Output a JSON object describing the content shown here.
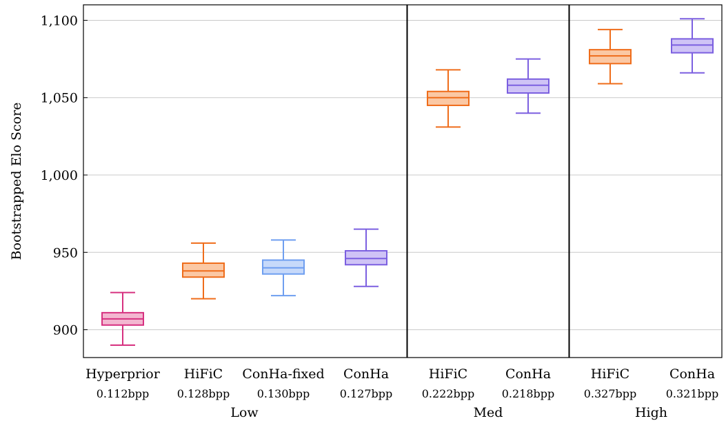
{
  "chart_data": {
    "type": "box",
    "title": "",
    "xlabel": "",
    "ylabel": "Bootstrapped Elo Score",
    "ylim": [
      882,
      1110
    ],
    "yticks": [
      900,
      950,
      1000,
      1050,
      1100
    ],
    "ytick_labels": [
      "900",
      "950",
      "1,000",
      "1,050",
      "1,100"
    ],
    "grid": "horizontal",
    "groups": [
      {
        "label": "Low",
        "count": 4
      },
      {
        "label": "Med",
        "count": 2
      },
      {
        "label": "High",
        "count": 2
      }
    ],
    "boxes": [
      {
        "name": "Hyperprior",
        "bpp": "0.112bpp",
        "group": "Low",
        "color": "#d6307f",
        "fill": "#f3b6d0",
        "min": 890,
        "q1": 903,
        "median": 907,
        "q3": 911,
        "max": 924
      },
      {
        "name": "HiFiC",
        "bpp": "0.128bpp",
        "group": "Low",
        "color": "#ef6c1a",
        "fill": "#fbc8a4",
        "min": 920,
        "q1": 934,
        "median": 938,
        "q3": 943,
        "max": 956
      },
      {
        "name": "ConHa-fixed",
        "bpp": "0.130bpp",
        "group": "Low",
        "color": "#6e9ef0",
        "fill": "#c6d9fa",
        "min": 922,
        "q1": 936,
        "median": 940,
        "q3": 945,
        "max": 958
      },
      {
        "name": "ConHa",
        "bpp": "0.127bpp",
        "group": "Low",
        "color": "#7b5fe0",
        "fill": "#cfc3f6",
        "min": 928,
        "q1": 942,
        "median": 946,
        "q3": 951,
        "max": 965
      },
      {
        "name": "HiFiC",
        "bpp": "0.222bpp",
        "group": "Med",
        "color": "#ef6c1a",
        "fill": "#fbc8a4",
        "min": 1031,
        "q1": 1045,
        "median": 1050,
        "q3": 1054,
        "max": 1068
      },
      {
        "name": "ConHa",
        "bpp": "0.218bpp",
        "group": "Med",
        "color": "#7b5fe0",
        "fill": "#cfc3f6",
        "min": 1040,
        "q1": 1053,
        "median": 1058,
        "q3": 1062,
        "max": 1075
      },
      {
        "name": "HiFiC",
        "bpp": "0.327bpp",
        "group": "High",
        "color": "#ef6c1a",
        "fill": "#fbc8a4",
        "min": 1059,
        "q1": 1072,
        "median": 1077,
        "q3": 1081,
        "max": 1094
      },
      {
        "name": "ConHa",
        "bpp": "0.321bpp",
        "group": "High",
        "color": "#7b5fe0",
        "fill": "#cfc3f6",
        "min": 1066,
        "q1": 1079,
        "median": 1084,
        "q3": 1088,
        "max": 1101
      }
    ]
  }
}
